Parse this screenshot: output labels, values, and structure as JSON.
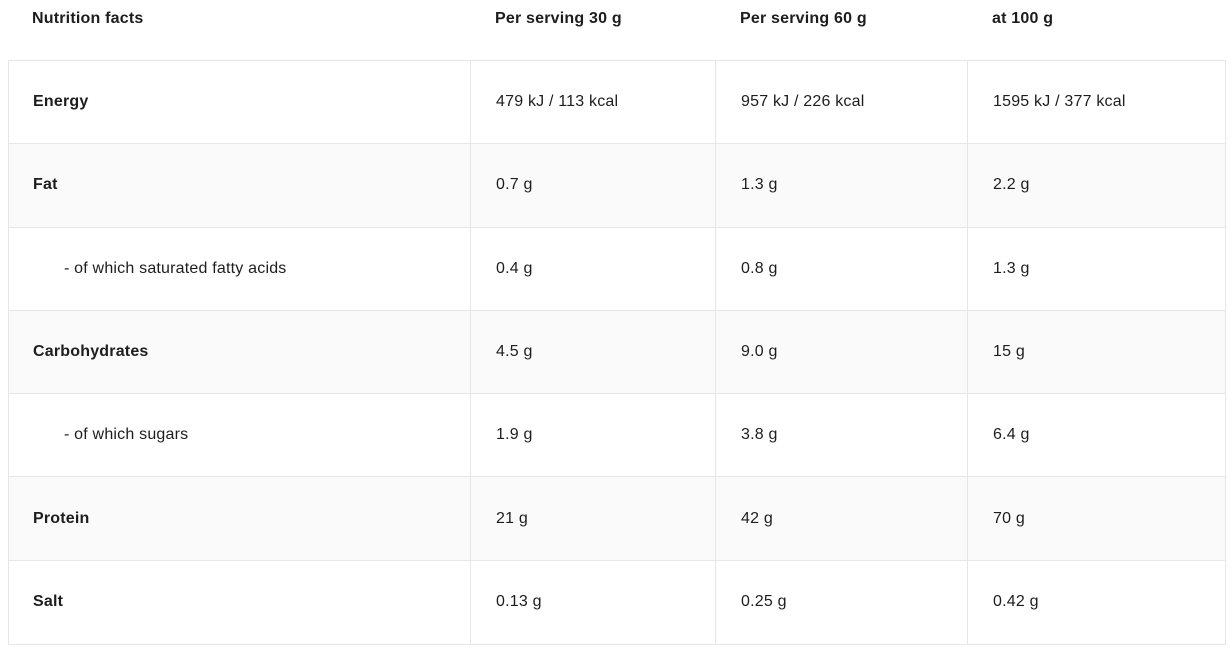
{
  "table": {
    "title": "Nutrition facts",
    "columns": [
      {
        "label": "Nutrition facts"
      },
      {
        "label": "Per serving 30 g"
      },
      {
        "label": "Per serving 60 g"
      },
      {
        "label": "at 100 g"
      }
    ],
    "rows": [
      {
        "label": "Energy",
        "values": [
          "479 kJ / 113 kcal",
          "957 kJ / 226 kcal",
          "1595 kJ / 377 kcal"
        ],
        "shaded": false,
        "sub": false
      },
      {
        "label": "Fat",
        "values": [
          "0.7 g",
          "1.3 g",
          "2.2 g"
        ],
        "shaded": true,
        "sub": false
      },
      {
        "label": "- of which saturated fatty acids",
        "values": [
          "0.4 g",
          "0.8 g",
          "1.3 g"
        ],
        "shaded": false,
        "sub": true
      },
      {
        "label": "Carbohydrates",
        "values": [
          "4.5 g",
          "9.0 g",
          "15 g"
        ],
        "shaded": true,
        "sub": false
      },
      {
        "label": "- of which sugars",
        "values": [
          "1.9 g",
          "3.8 g",
          "6.4 g"
        ],
        "shaded": false,
        "sub": true
      },
      {
        "label": "Protein",
        "values": [
          "21 g",
          "42 g",
          "70 g"
        ],
        "shaded": true,
        "sub": false
      },
      {
        "label": "Salt",
        "values": [
          "0.13 g",
          "0.25 g",
          "0.42 g"
        ],
        "shaded": false,
        "sub": false
      }
    ]
  },
  "colors": {
    "text": "#1d1d1d",
    "border": "#e6e6e6",
    "shaded_row": "#fafafa",
    "background": "#ffffff"
  }
}
